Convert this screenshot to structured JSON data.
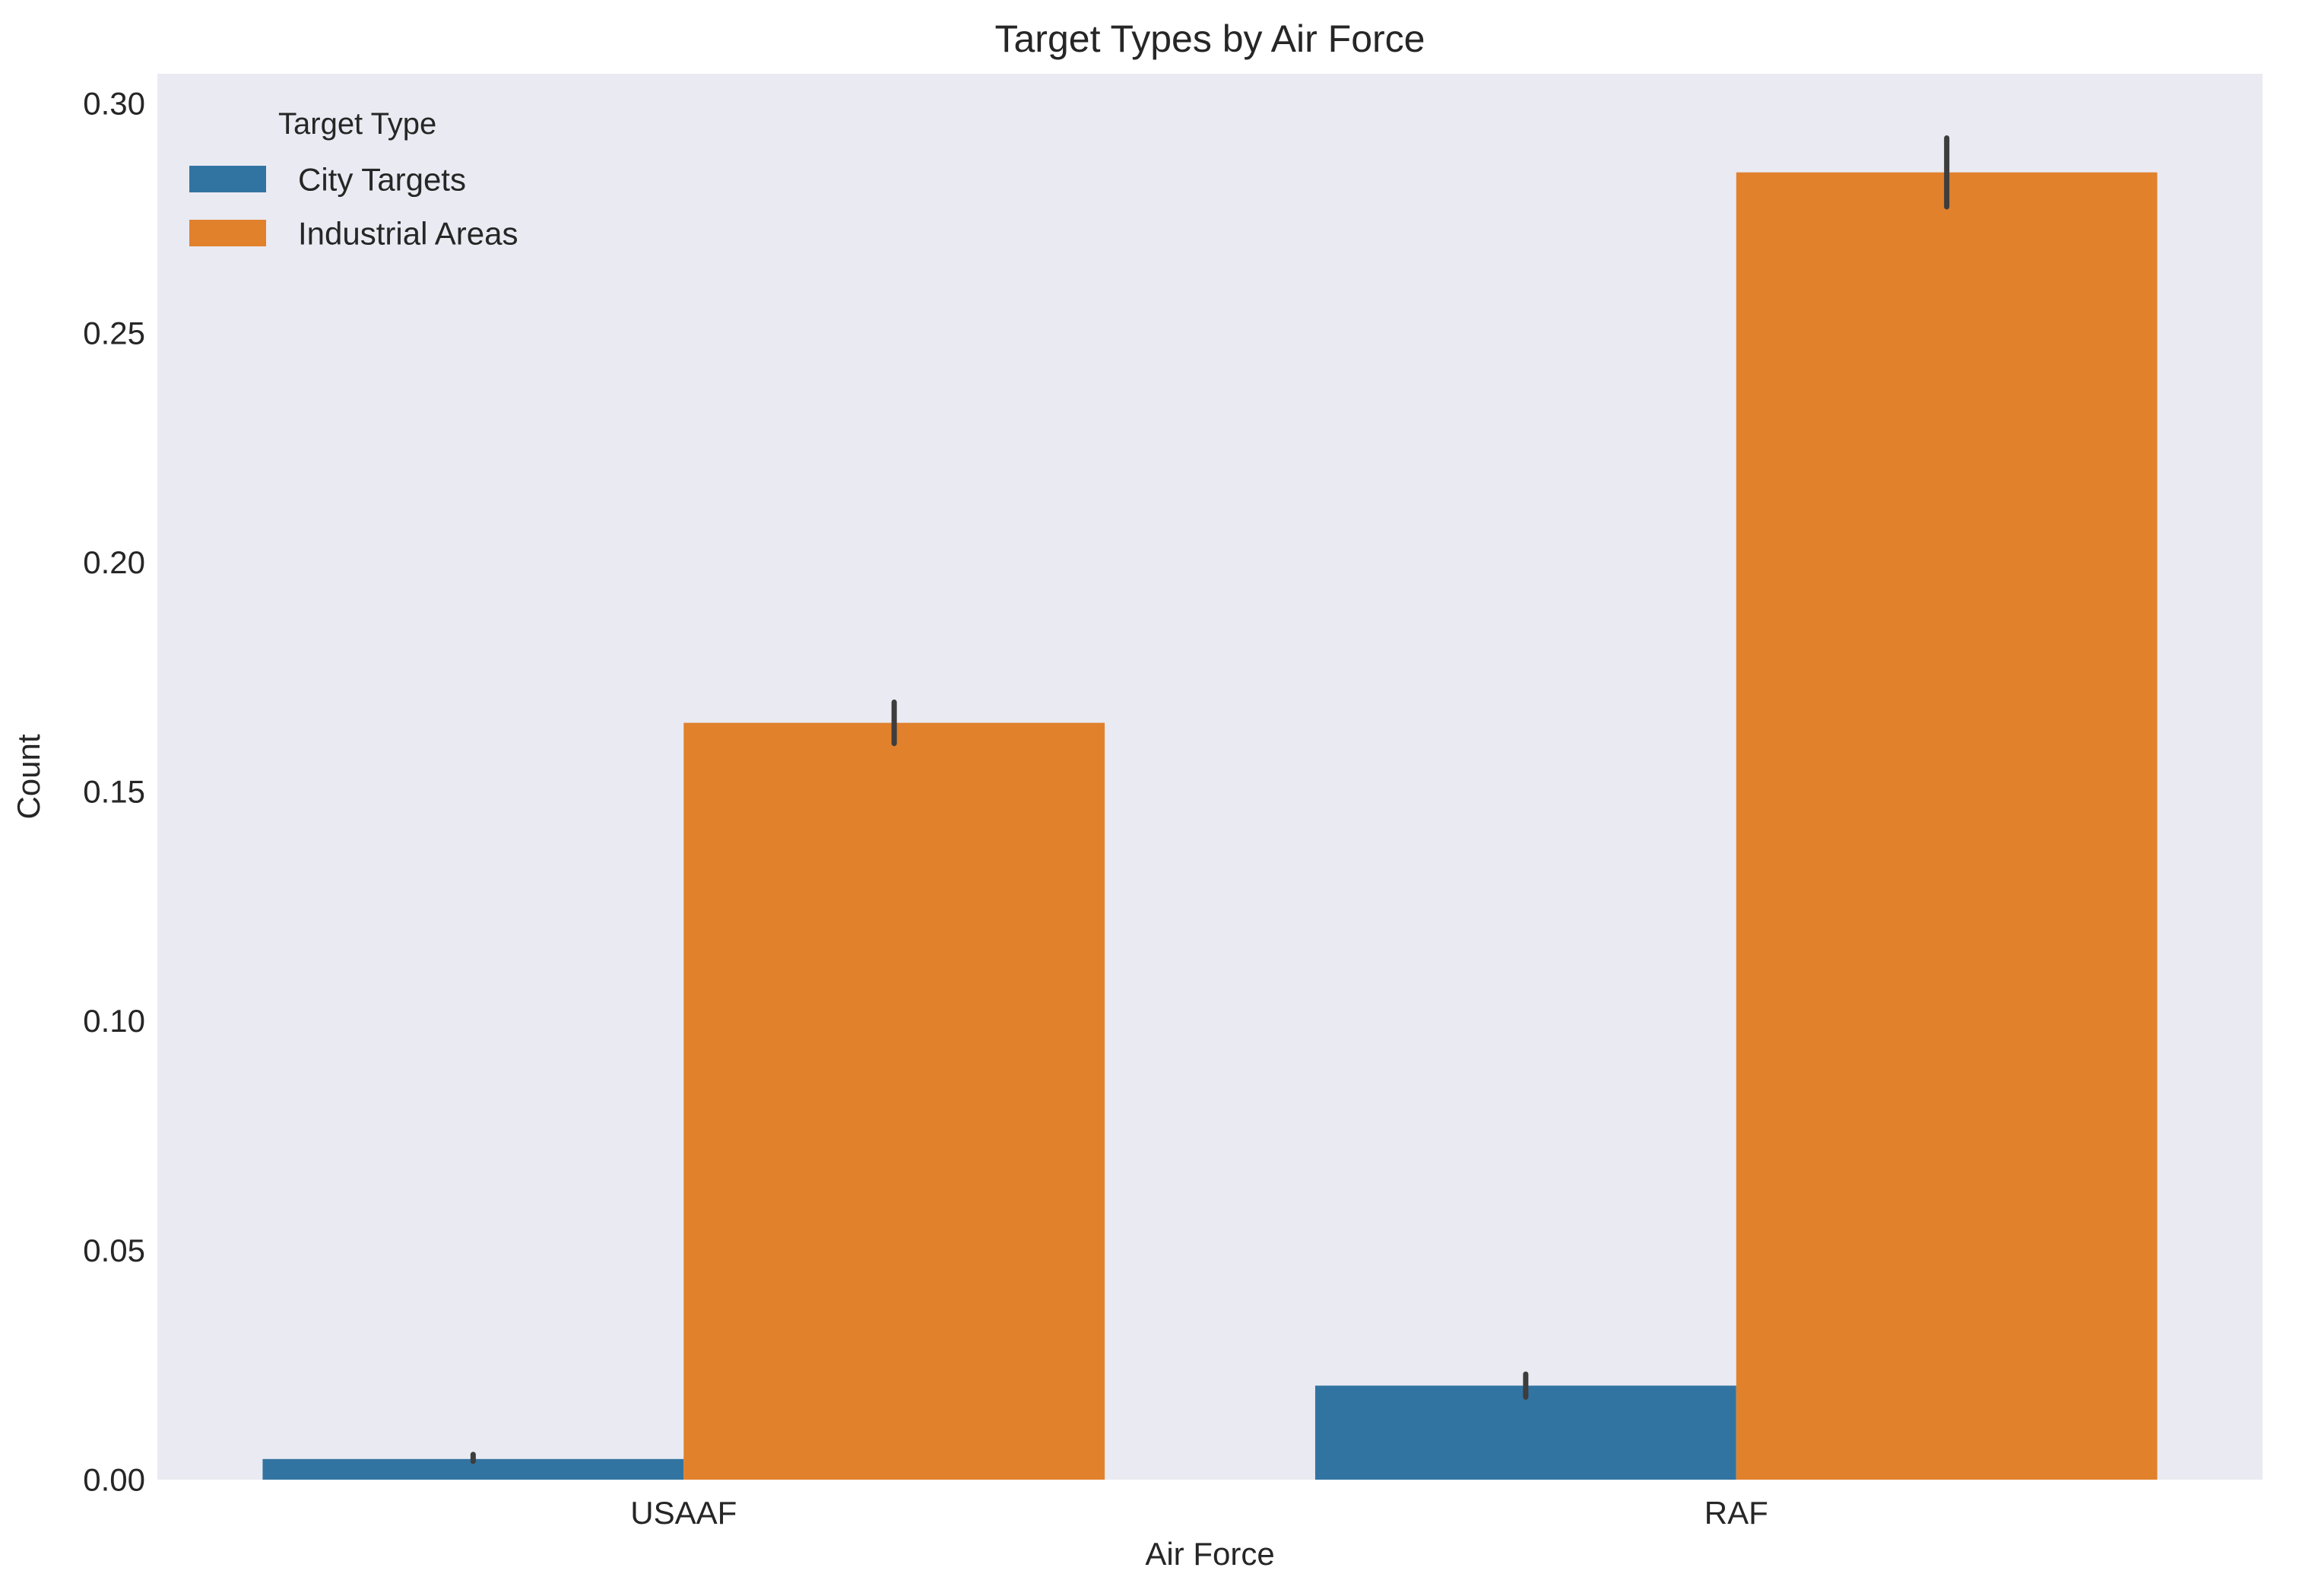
{
  "chart_data": {
    "type": "bar",
    "title": "Target Types by Air Force",
    "xlabel": "Air Force",
    "ylabel": "Count",
    "categories": [
      "USAAF",
      "RAF"
    ],
    "series": [
      {
        "name": "City Targets",
        "values": [
          0.0045,
          0.0205
        ],
        "error": [
          [
            0.004,
            0.0055
          ],
          [
            0.018,
            0.023
          ]
        ],
        "color": "#3274a1"
      },
      {
        "name": "Industrial Areas",
        "values": [
          0.165,
          0.285
        ],
        "error": [
          [
            0.1605,
            0.1695
          ],
          [
            0.2775,
            0.2925
          ]
        ],
        "color": "#e1812c"
      }
    ],
    "ylim": [
      0,
      0.3065
    ],
    "yticks": [
      0.0,
      0.05,
      0.1,
      0.15,
      0.2,
      0.25,
      0.3
    ],
    "ytick_labels": [
      "0.00",
      "0.05",
      "0.10",
      "0.15",
      "0.20",
      "0.25",
      "0.30"
    ],
    "legend": {
      "title": "Target Type",
      "placement": "upper-left"
    },
    "grid": false,
    "background": "#eaeaf2",
    "errorbar_color": "#3d3d3d"
  }
}
